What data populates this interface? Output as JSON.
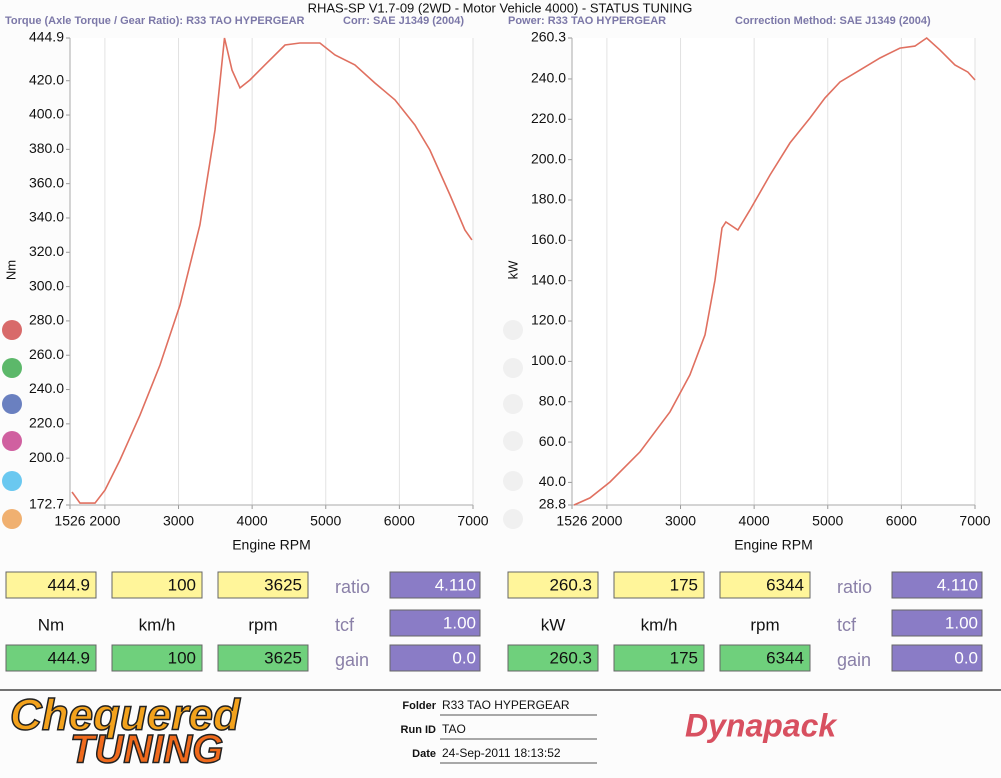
{
  "title": "RHAS-SP V1.7-09  (2WD - Motor Vehicle 4000) - STATUS TUNING",
  "chart_data": [
    {
      "type": "line",
      "subtitle": "Torque (Axle Torque / Gear Ratio): R33 TAO HYPERGEAR",
      "correction": "Corr: SAE J1349 (2004)",
      "x_label": "Engine RPM",
      "y_label": "Nm",
      "color": "#e07060",
      "grid": "x",
      "xlim": [
        1526,
        7000
      ],
      "xticks": [
        1526,
        2000,
        3000,
        4000,
        5000,
        6000,
        7000
      ],
      "ylim": [
        172.7,
        444.9
      ],
      "yticks": [
        172.7,
        {
          "value": 200,
          "label": "200.0"
        },
        {
          "value": 220,
          "label": "220.0"
        },
        {
          "value": 240,
          "label": "240.0"
        },
        {
          "value": 260,
          "label": "260.0"
        },
        {
          "value": 280,
          "label": "280.0"
        },
        {
          "value": 300,
          "label": "300.0"
        },
        {
          "value": 320,
          "label": "320.0"
        },
        {
          "value": 340,
          "label": "340.0"
        },
        {
          "value": 360,
          "label": "360.0"
        },
        {
          "value": 380,
          "label": "380.0"
        },
        {
          "value": 400,
          "label": "400.0"
        },
        {
          "value": 420,
          "label": "420.0"
        },
        444.9
      ],
      "x": [
        1553,
        1662,
        1866,
        2001,
        2205,
        2477,
        2748,
        3020,
        3291,
        3495,
        3625,
        3726,
        3835,
        3970,
        4174,
        4446,
        4649,
        4921,
        5125,
        5396,
        5668,
        5940,
        6211,
        6415,
        6687,
        6890,
        6985
      ],
      "values": [
        180.3,
        173.8,
        173.8,
        181.4,
        198.9,
        225.1,
        254.3,
        289.3,
        335.9,
        391.3,
        444.9,
        426.2,
        415.8,
        420.4,
        429.2,
        440.8,
        442.0,
        442.0,
        435.0,
        429.2,
        418.7,
        408.8,
        394.2,
        379.6,
        353.4,
        333.0,
        327.2
      ]
    },
    {
      "type": "line",
      "subtitle": "Power: R33 TAO HYPERGEAR",
      "correction": "Correction Method: SAE J1349 (2004)",
      "x_label": "Engine RPM",
      "y_label": "kW",
      "color": "#e07060",
      "grid": "x",
      "xlim": [
        1526,
        7000
      ],
      "xticks": [
        1526,
        2000,
        3000,
        4000,
        5000,
        6000,
        7000
      ],
      "ylim": [
        28.8,
        260.3
      ],
      "yticks": [
        28.8,
        {
          "value": 40,
          "label": "40.0"
        },
        {
          "value": 60,
          "label": "60.0"
        },
        {
          "value": 80,
          "label": "80.0"
        },
        {
          "value": 100,
          "label": "100.0"
        },
        {
          "value": 120,
          "label": "120.0"
        },
        {
          "value": 140,
          "label": "140.0"
        },
        {
          "value": 160,
          "label": "160.0"
        },
        {
          "value": 180,
          "label": "180.0"
        },
        {
          "value": 200,
          "label": "200.0"
        },
        {
          "value": 220,
          "label": "220.0"
        },
        {
          "value": 240,
          "label": "240.0"
        },
        260.3
      ],
      "x": [
        1553,
        1770,
        2042,
        2449,
        2857,
        3128,
        3332,
        3468,
        3563,
        3617,
        3780,
        3943,
        4215,
        4487,
        4758,
        4962,
        5166,
        5437,
        5709,
        5980,
        6184,
        6344,
        6523,
        6727,
        6904,
        7000
      ],
      "values": [
        28.8,
        32.3,
        40.2,
        55.1,
        75.0,
        93.3,
        113.1,
        140.3,
        166.1,
        169.1,
        165.1,
        175.0,
        192.4,
        208.3,
        220.6,
        230.6,
        238.5,
        244.4,
        250.4,
        255.3,
        256.3,
        260.3,
        254.4,
        246.9,
        243.4,
        239.5
      ]
    }
  ],
  "panels": [
    {
      "rows": [
        [
          "444.9",
          "100",
          "3625",
          "ratio",
          "4.110"
        ],
        [
          "Nm",
          "km/h",
          "rpm",
          "tcf",
          "1.00"
        ],
        [
          "444.9",
          "100",
          "3625",
          "gain",
          "0.0"
        ]
      ]
    },
    {
      "rows": [
        [
          "260.3",
          "175",
          "6344",
          "ratio",
          "4.110"
        ],
        [
          "kW",
          "km/h",
          "rpm",
          "tcf",
          "1.00"
        ],
        [
          "260.3",
          "175",
          "6344",
          "gain",
          "0.0"
        ]
      ]
    }
  ],
  "footer": {
    "logo": [
      "Chequered",
      "TUNING"
    ],
    "fields": [
      {
        "label": "Folder",
        "value": "R33 TAO HYPERGEAR"
      },
      {
        "label": "Run ID",
        "value": "TAO"
      },
      {
        "label": "Date",
        "value": "24-Sep-2011  18:13:52"
      }
    ],
    "brand": "Dynapack"
  }
}
